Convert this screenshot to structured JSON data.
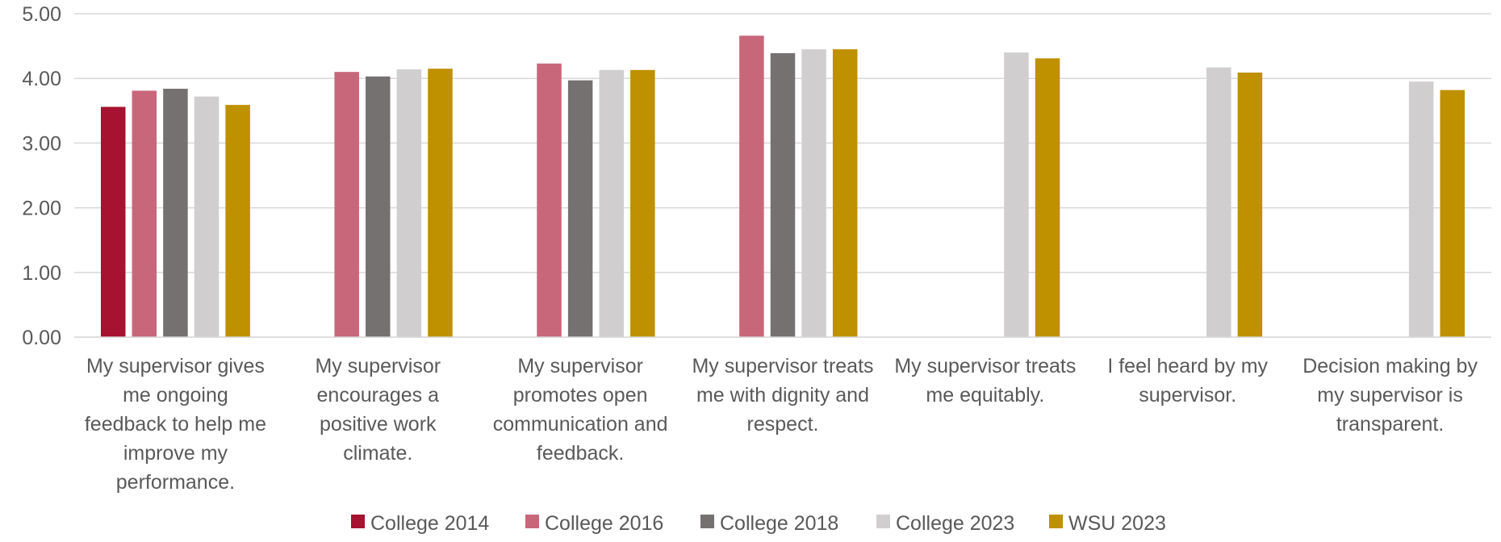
{
  "chart_data": {
    "type": "bar",
    "title": "",
    "xlabel": "",
    "ylabel": "",
    "ylim": [
      0,
      5
    ],
    "yticks": [
      "0.00",
      "1.00",
      "2.00",
      "3.00",
      "4.00",
      "5.00"
    ],
    "grid": true,
    "legend_position": "bottom",
    "categories": [
      [
        "My supervisor gives",
        "me ongoing",
        "feedback to help me",
        "improve my",
        "performance."
      ],
      [
        "My supervisor",
        "encourages a",
        "positive work",
        "climate."
      ],
      [
        "My supervisor",
        "promotes open",
        "communication and",
        "feedback."
      ],
      [
        "My supervisor treats",
        "me with dignity and",
        "respect."
      ],
      [
        "My supervisor treats",
        "me equitably."
      ],
      [
        "I feel heard by my",
        "supervisor."
      ],
      [
        "Decision making by",
        "my supervisor is",
        "transparent."
      ]
    ],
    "series": [
      {
        "name": "College 2014",
        "color": "#A6122F",
        "values": [
          3.56,
          null,
          null,
          null,
          null,
          null,
          null
        ]
      },
      {
        "name": "College 2016",
        "color": "#C8677A",
        "values": [
          3.81,
          4.1,
          4.23,
          4.66,
          null,
          null,
          null
        ]
      },
      {
        "name": "College 2018",
        "color": "#767171",
        "values": [
          3.84,
          4.03,
          3.97,
          4.39,
          null,
          null,
          null
        ]
      },
      {
        "name": "College 2023",
        "color": "#D0CECE",
        "values": [
          3.72,
          4.14,
          4.13,
          4.45,
          4.4,
          4.17,
          3.95
        ]
      },
      {
        "name": "WSU 2023",
        "color": "#BF9000",
        "values": [
          3.59,
          4.15,
          4.13,
          4.45,
          4.31,
          4.09,
          3.82
        ]
      }
    ]
  }
}
